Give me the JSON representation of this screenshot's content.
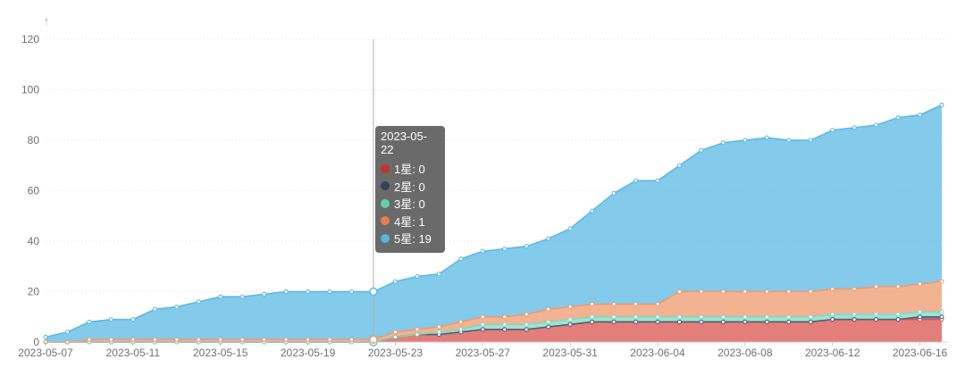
{
  "chart_data": {
    "type": "area",
    "stacked": true,
    "title": "",
    "xlabel": "",
    "ylabel": "",
    "ylim": [
      0,
      120
    ],
    "yticks": [
      0,
      20,
      40,
      60,
      80,
      100,
      120
    ],
    "y_axis_arrow": "↑",
    "x_tick_labels": [
      "2023-05-07",
      "2023-05-11",
      "2023-05-15",
      "2023-05-19",
      "2023-05-23",
      "2023-05-27",
      "2023-05-31",
      "2023-06-04",
      "2023-06-08",
      "2023-06-12",
      "2023-06-16"
    ],
    "x": [
      "2023-05-07",
      "2023-05-08",
      "2023-05-09",
      "2023-05-10",
      "2023-05-11",
      "2023-05-12",
      "2023-05-13",
      "2023-05-14",
      "2023-05-15",
      "2023-05-16",
      "2023-05-17",
      "2023-05-18",
      "2023-05-19",
      "2023-05-20",
      "2023-05-21",
      "2023-05-22",
      "2023-05-23",
      "2023-05-24",
      "2023-05-25",
      "2023-05-26",
      "2023-05-27",
      "2023-05-28",
      "2023-05-29",
      "2023-05-30",
      "2023-05-31",
      "2023-06-01",
      "2023-06-02",
      "2023-06-03",
      "2023-06-04",
      "2023-06-05",
      "2023-06-06",
      "2023-06-07",
      "2023-06-08",
      "2023-06-09",
      "2023-06-10",
      "2023-06-11",
      "2023-06-12",
      "2023-06-13",
      "2023-06-14",
      "2023-06-15",
      "2023-06-16",
      "2023-06-17"
    ],
    "series": [
      {
        "name": "1星",
        "color": "#d9534f",
        "values": [
          0,
          0,
          0,
          0,
          0,
          0,
          0,
          0,
          0,
          0,
          0,
          0,
          0,
          0,
          0,
          0,
          2,
          3,
          3,
          4,
          5,
          5,
          5,
          6,
          7,
          8,
          8,
          8,
          8,
          8,
          8,
          8,
          8,
          8,
          8,
          8,
          9,
          9,
          9,
          9,
          9,
          9
        ]
      },
      {
        "name": "2星",
        "color": "#44627a",
        "values": [
          0,
          0,
          0,
          0,
          0,
          0,
          0,
          0,
          0,
          0,
          0,
          0,
          0,
          0,
          0,
          0,
          0,
          0,
          0,
          0,
          0,
          0,
          0,
          0,
          0,
          0,
          0,
          0,
          0,
          0,
          0,
          0,
          0,
          0,
          0,
          0,
          0,
          0,
          0,
          0,
          1,
          1
        ]
      },
      {
        "name": "3星",
        "color": "#7fd8c0",
        "values": [
          0,
          0,
          0,
          0,
          0,
          0,
          0,
          0,
          0,
          0,
          0,
          0,
          0,
          0,
          0,
          0,
          0,
          0,
          1,
          1,
          2,
          2,
          2,
          2,
          2,
          2,
          2,
          2,
          2,
          2,
          2,
          2,
          2,
          2,
          2,
          2,
          2,
          2,
          2,
          2,
          2,
          2
        ]
      },
      {
        "name": "4星",
        "color": "#ee9a6e",
        "values": [
          0,
          0,
          1,
          1,
          1,
          1,
          1,
          1,
          1,
          1,
          1,
          1,
          1,
          1,
          1,
          1,
          2,
          2,
          2,
          3,
          3,
          3,
          4,
          5,
          5,
          5,
          5,
          5,
          5,
          10,
          10,
          10,
          10,
          10,
          10,
          10,
          10,
          10,
          11,
          11,
          11,
          12
        ]
      },
      {
        "name": "5星",
        "color": "#5ab8e4",
        "values": [
          2,
          4,
          7,
          8,
          8,
          12,
          13,
          15,
          17,
          17,
          18,
          19,
          19,
          19,
          19,
          19,
          20,
          21,
          21,
          25,
          26,
          27,
          27,
          28,
          31,
          37,
          44,
          49,
          49,
          50,
          56,
          59,
          60,
          61,
          60,
          60,
          63,
          64,
          64,
          67,
          67,
          70
        ]
      }
    ],
    "highlight_index": 15,
    "tooltip": {
      "date": "2023-05-22",
      "rows": [
        {
          "label": "1星: 0",
          "color": "#c23531"
        },
        {
          "label": "2星: 0",
          "color": "#2f4554"
        },
        {
          "label": "3星: 0",
          "color": "#61d2a8"
        },
        {
          "label": "4星: 1",
          "color": "#e87c4f"
        },
        {
          "label": "5星: 19",
          "color": "#56b4e0"
        }
      ]
    }
  }
}
